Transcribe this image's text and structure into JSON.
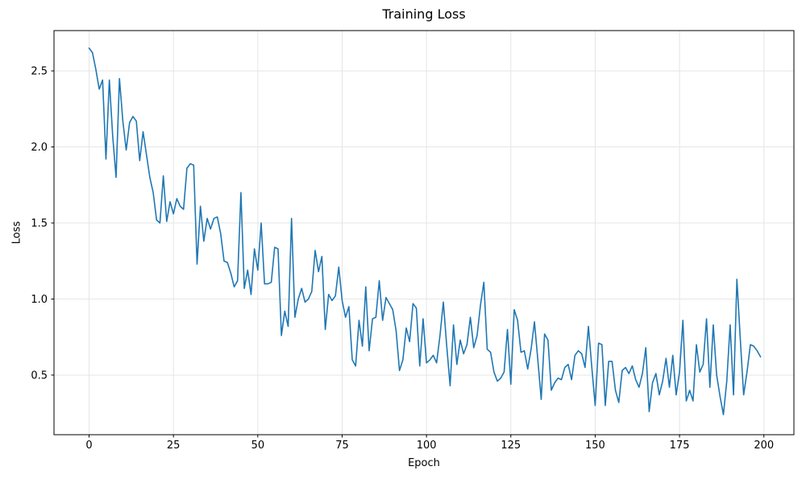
{
  "figure": {
    "title": "Training Loss",
    "xlabel": "Epoch",
    "ylabel": "Loss"
  },
  "chart_data": {
    "type": "line",
    "title": "Training Loss",
    "xlabel": "Epoch",
    "ylabel": "Loss",
    "grid": true,
    "legend_position": "none",
    "background_color": "#ffffff",
    "grid_color": "#e5e5e5",
    "spine_color": "#000000",
    "line_color": "#1f77b4",
    "line_width": 1.6,
    "x_tick_labels": [
      "0",
      "25",
      "50",
      "75",
      "100",
      "125",
      "150",
      "175",
      "200"
    ],
    "x_tick_values": [
      0,
      25,
      50,
      75,
      100,
      125,
      150,
      175,
      200
    ],
    "y_tick_labels": [
      "0.5",
      "1.0",
      "1.5",
      "2.0",
      "2.5"
    ],
    "y_tick_values": [
      0.5,
      1.0,
      1.5,
      2.0,
      2.5
    ],
    "xlim": [
      -10.4,
      208.9
    ],
    "ylim": [
      0.108,
      2.765
    ],
    "series": [
      {
        "name": "Training Loss",
        "x_start": 0,
        "x_step": 1,
        "values": [
          2.65,
          2.62,
          2.51,
          2.38,
          2.44,
          1.92,
          2.44,
          2.07,
          1.8,
          2.45,
          2.17,
          1.98,
          2.16,
          2.2,
          2.17,
          1.91,
          2.1,
          1.95,
          1.8,
          1.7,
          1.52,
          1.5,
          1.81,
          1.51,
          1.64,
          1.56,
          1.66,
          1.61,
          1.59,
          1.86,
          1.89,
          1.88,
          1.23,
          1.61,
          1.38,
          1.53,
          1.46,
          1.53,
          1.54,
          1.43,
          1.25,
          1.24,
          1.17,
          1.08,
          1.12,
          1.7,
          1.07,
          1.19,
          1.03,
          1.33,
          1.19,
          1.5,
          1.1,
          1.1,
          1.11,
          1.34,
          1.33,
          0.76,
          0.92,
          0.82,
          1.53,
          0.88,
          1.0,
          1.07,
          0.98,
          1.0,
          1.05,
          1.32,
          1.18,
          1.28,
          0.8,
          1.03,
          0.99,
          1.02,
          1.21,
          0.99,
          0.88,
          0.95,
          0.6,
          0.56,
          0.86,
          0.69,
          1.08,
          0.66,
          0.87,
          0.88,
          1.12,
          0.86,
          1.01,
          0.97,
          0.93,
          0.79,
          0.53,
          0.6,
          0.81,
          0.72,
          0.97,
          0.94,
          0.56,
          0.87,
          0.58,
          0.6,
          0.63,
          0.58,
          0.76,
          0.98,
          0.69,
          0.43,
          0.83,
          0.57,
          0.73,
          0.64,
          0.7,
          0.88,
          0.68,
          0.76,
          0.96,
          1.11,
          0.67,
          0.65,
          0.52,
          0.46,
          0.48,
          0.52,
          0.8,
          0.44,
          0.93,
          0.86,
          0.65,
          0.66,
          0.54,
          0.67,
          0.85,
          0.6,
          0.34,
          0.77,
          0.73,
          0.4,
          0.45,
          0.48,
          0.47,
          0.55,
          0.57,
          0.47,
          0.63,
          0.66,
          0.64,
          0.55,
          0.82,
          0.55,
          0.3,
          0.71,
          0.7,
          0.3,
          0.59,
          0.59,
          0.4,
          0.32,
          0.53,
          0.55,
          0.51,
          0.56,
          0.47,
          0.42,
          0.51,
          0.68,
          0.26,
          0.45,
          0.51,
          0.37,
          0.46,
          0.61,
          0.42,
          0.63,
          0.37,
          0.52,
          0.86,
          0.33,
          0.4,
          0.33,
          0.7,
          0.52,
          0.57,
          0.87,
          0.42,
          0.83,
          0.5,
          0.36,
          0.24,
          0.46,
          0.83,
          0.37,
          1.13,
          0.74,
          0.37,
          0.52,
          0.7,
          0.69,
          0.66,
          0.62
        ]
      }
    ]
  }
}
